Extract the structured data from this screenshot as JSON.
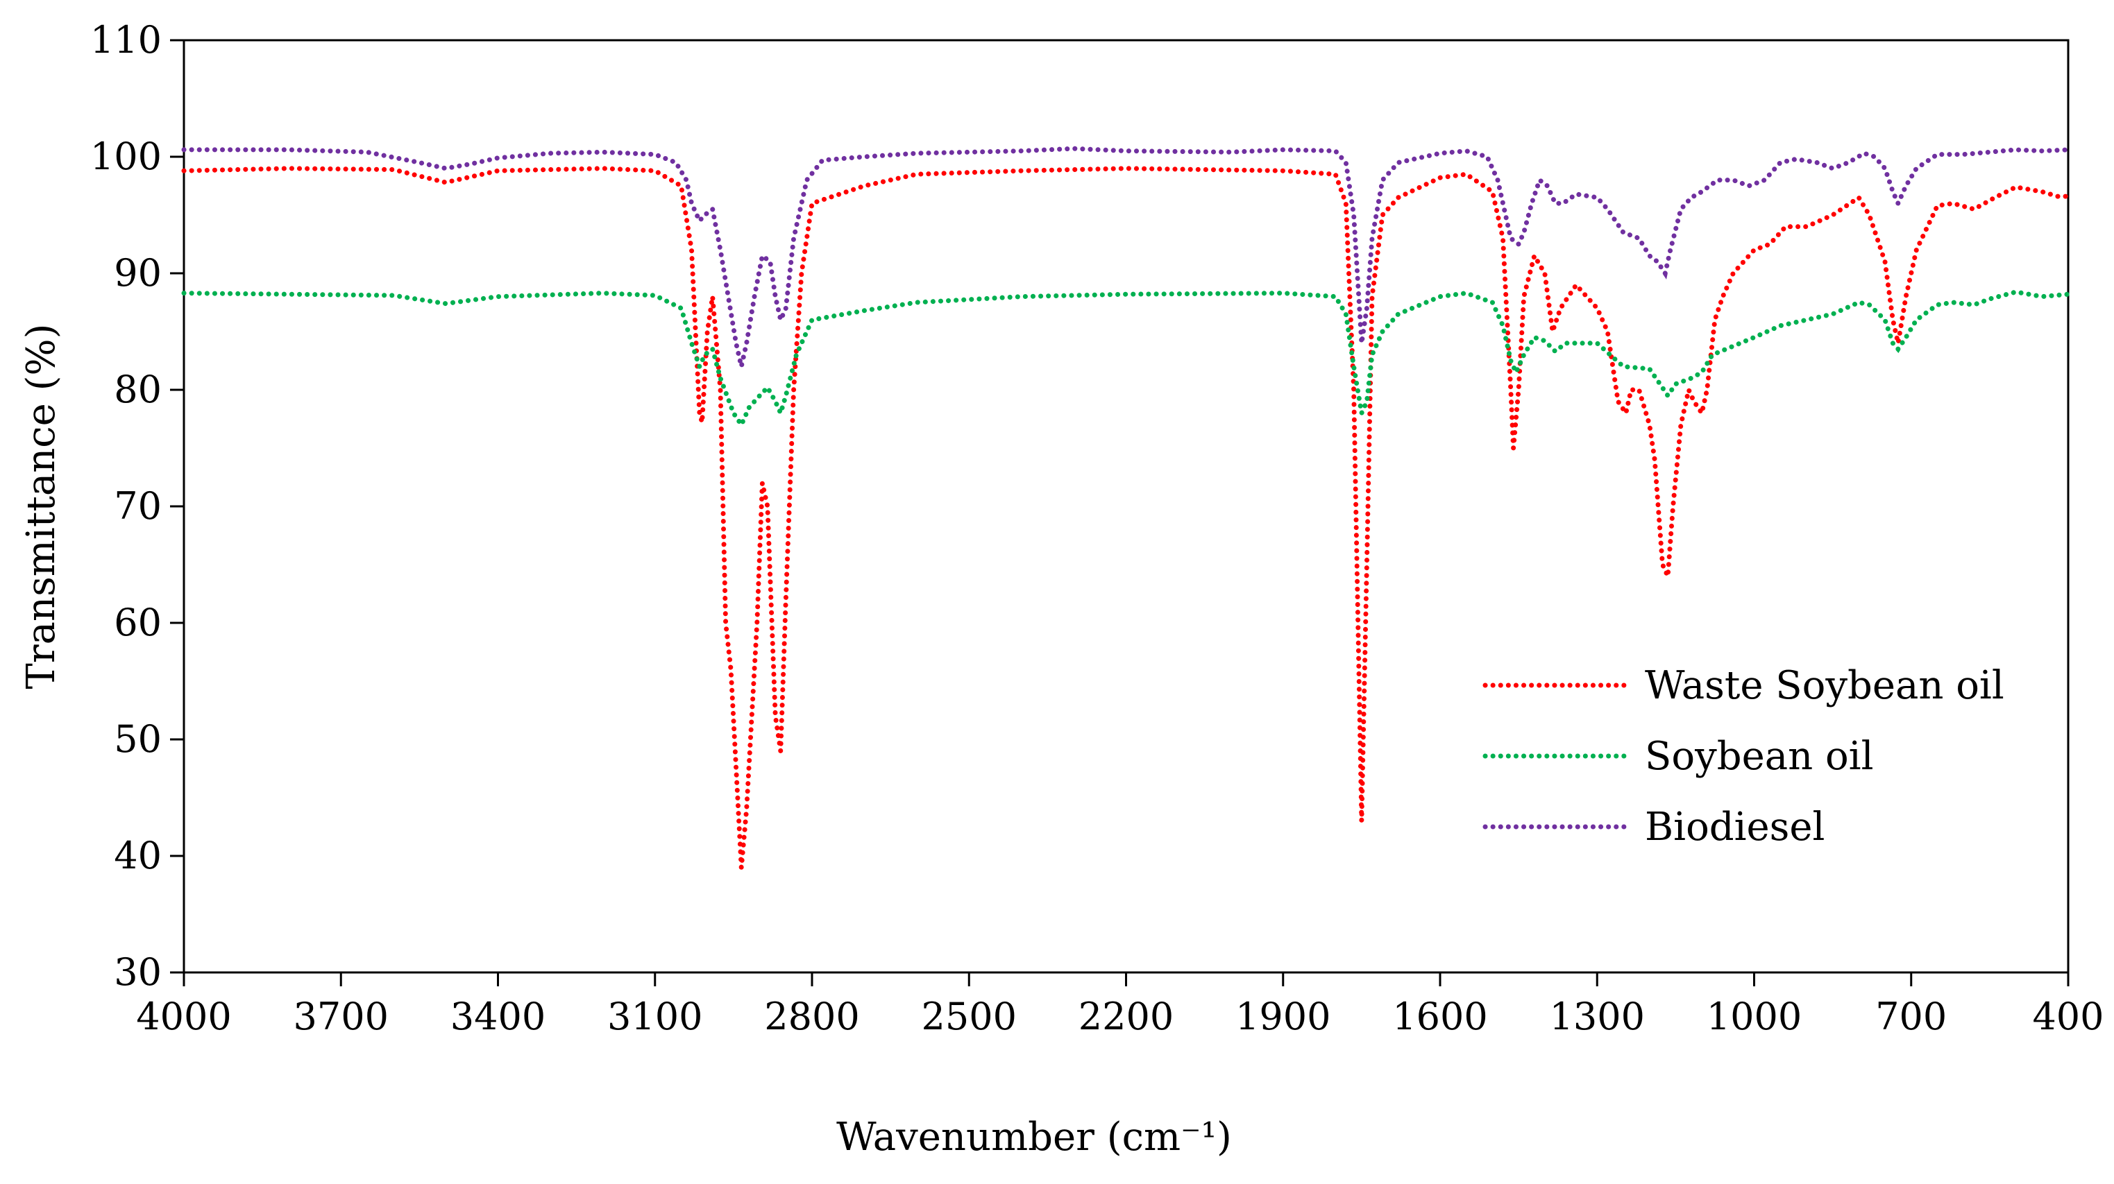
{
  "chart_data": {
    "type": "line",
    "title": "",
    "xlabel": "Wavenumber (cm⁻¹)",
    "ylabel": "Transmittance (%)",
    "xlim": [
      4000,
      400
    ],
    "ylim": [
      30,
      110
    ],
    "x_ticks": [
      4000,
      3700,
      3400,
      3100,
      2800,
      2500,
      2200,
      1900,
      1600,
      1300,
      1000,
      700,
      400
    ],
    "y_ticks": [
      30,
      40,
      50,
      60,
      70,
      80,
      90,
      100,
      110
    ],
    "grid": false,
    "legend_position": "center-right",
    "series": [
      {
        "name": "Waste Soybean oil",
        "color": "#ff0000",
        "points": [
          [
            4000,
            98.8
          ],
          [
            3800,
            99.0
          ],
          [
            3600,
            98.9
          ],
          [
            3500,
            97.8
          ],
          [
            3400,
            98.8
          ],
          [
            3200,
            99.0
          ],
          [
            3100,
            98.8
          ],
          [
            3050,
            97.5
          ],
          [
            3030,
            92
          ],
          [
            3015,
            78
          ],
          [
            3010,
            77.2
          ],
          [
            3000,
            85
          ],
          [
            2990,
            88
          ],
          [
            2975,
            80
          ],
          [
            2965,
            60
          ],
          [
            2955,
            56
          ],
          [
            2935,
            39
          ],
          [
            2925,
            44
          ],
          [
            2905,
            60
          ],
          [
            2895,
            72
          ],
          [
            2885,
            70
          ],
          [
            2870,
            52
          ],
          [
            2860,
            49
          ],
          [
            2850,
            62
          ],
          [
            2835,
            80
          ],
          [
            2820,
            90
          ],
          [
            2800,
            96
          ],
          [
            2700,
            97.5
          ],
          [
            2600,
            98.5
          ],
          [
            2400,
            98.8
          ],
          [
            2200,
            99.0
          ],
          [
            1900,
            98.8
          ],
          [
            1800,
            98.5
          ],
          [
            1780,
            96
          ],
          [
            1765,
            80
          ],
          [
            1750,
            43
          ],
          [
            1740,
            65
          ],
          [
            1730,
            88
          ],
          [
            1710,
            95
          ],
          [
            1680,
            96.5
          ],
          [
            1600,
            98.2
          ],
          [
            1550,
            98.5
          ],
          [
            1500,
            97
          ],
          [
            1480,
            93
          ],
          [
            1465,
            80
          ],
          [
            1460,
            75
          ],
          [
            1450,
            80
          ],
          [
            1440,
            88
          ],
          [
            1420,
            91.5
          ],
          [
            1400,
            90
          ],
          [
            1385,
            85
          ],
          [
            1370,
            87
          ],
          [
            1340,
            89
          ],
          [
            1320,
            88
          ],
          [
            1300,
            87
          ],
          [
            1280,
            85
          ],
          [
            1260,
            79
          ],
          [
            1245,
            78
          ],
          [
            1235,
            80
          ],
          [
            1220,
            80
          ],
          [
            1200,
            77
          ],
          [
            1190,
            74
          ],
          [
            1175,
            65
          ],
          [
            1165,
            64
          ],
          [
            1155,
            70
          ],
          [
            1140,
            77
          ],
          [
            1125,
            80
          ],
          [
            1115,
            79
          ],
          [
            1100,
            78
          ],
          [
            1090,
            80
          ],
          [
            1075,
            86
          ],
          [
            1060,
            88
          ],
          [
            1040,
            90
          ],
          [
            1000,
            92
          ],
          [
            970,
            92.5
          ],
          [
            940,
            94
          ],
          [
            900,
            94
          ],
          [
            850,
            95
          ],
          [
            800,
            96.5
          ],
          [
            780,
            95
          ],
          [
            750,
            91
          ],
          [
            735,
            86
          ],
          [
            725,
            84
          ],
          [
            710,
            88
          ],
          [
            690,
            92
          ],
          [
            650,
            95.8
          ],
          [
            620,
            96
          ],
          [
            580,
            95.5
          ],
          [
            540,
            96.5
          ],
          [
            500,
            97.4
          ],
          [
            450,
            97
          ],
          [
            420,
            96.6
          ],
          [
            400,
            96.6
          ]
        ]
      },
      {
        "name": "Soybean oil",
        "color": "#00b050",
        "points": [
          [
            4000,
            88.3
          ],
          [
            3800,
            88.2
          ],
          [
            3600,
            88.1
          ],
          [
            3500,
            87.4
          ],
          [
            3400,
            88
          ],
          [
            3200,
            88.3
          ],
          [
            3100,
            88.1
          ],
          [
            3050,
            87
          ],
          [
            3030,
            84
          ],
          [
            3015,
            82
          ],
          [
            3005,
            83
          ],
          [
            2990,
            83.5
          ],
          [
            2975,
            81
          ],
          [
            2950,
            78
          ],
          [
            2935,
            77
          ],
          [
            2920,
            78.5
          ],
          [
            2900,
            79.5
          ],
          [
            2885,
            80.2
          ],
          [
            2870,
            79
          ],
          [
            2860,
            78
          ],
          [
            2850,
            79.5
          ],
          [
            2830,
            83
          ],
          [
            2800,
            86
          ],
          [
            2700,
            86.8
          ],
          [
            2600,
            87.5
          ],
          [
            2400,
            88
          ],
          [
            2200,
            88.2
          ],
          [
            1900,
            88.3
          ],
          [
            1800,
            88
          ],
          [
            1780,
            86.5
          ],
          [
            1765,
            82
          ],
          [
            1750,
            78
          ],
          [
            1740,
            79
          ],
          [
            1730,
            83
          ],
          [
            1710,
            85
          ],
          [
            1680,
            86.5
          ],
          [
            1600,
            88
          ],
          [
            1550,
            88.3
          ],
          [
            1500,
            87.5
          ],
          [
            1480,
            85.5
          ],
          [
            1465,
            82.5
          ],
          [
            1455,
            81.5
          ],
          [
            1440,
            83
          ],
          [
            1420,
            84.5
          ],
          [
            1400,
            84.2
          ],
          [
            1380,
            83.3
          ],
          [
            1360,
            84
          ],
          [
            1300,
            84
          ],
          [
            1280,
            83.2
          ],
          [
            1250,
            82
          ],
          [
            1200,
            81.8
          ],
          [
            1180,
            80.5
          ],
          [
            1165,
            79.5
          ],
          [
            1150,
            80.5
          ],
          [
            1120,
            81
          ],
          [
            1100,
            81.5
          ],
          [
            1080,
            83
          ],
          [
            1000,
            84.5
          ],
          [
            950,
            85.5
          ],
          [
            900,
            86
          ],
          [
            850,
            86.5
          ],
          [
            800,
            87.5
          ],
          [
            780,
            87.3
          ],
          [
            750,
            86
          ],
          [
            735,
            84
          ],
          [
            725,
            83.5
          ],
          [
            710,
            84.5
          ],
          [
            690,
            86
          ],
          [
            650,
            87.3
          ],
          [
            620,
            87.5
          ],
          [
            580,
            87.3
          ],
          [
            550,
            87.8
          ],
          [
            500,
            88.4
          ],
          [
            450,
            88
          ],
          [
            400,
            88.2
          ]
        ]
      },
      {
        "name": "Biodiesel",
        "color": "#7030a0",
        "points": [
          [
            4000,
            100.6
          ],
          [
            3800,
            100.6
          ],
          [
            3650,
            100.4
          ],
          [
            3550,
            99.5
          ],
          [
            3500,
            99.0
          ],
          [
            3450,
            99.4
          ],
          [
            3400,
            99.9
          ],
          [
            3300,
            100.3
          ],
          [
            3200,
            100.4
          ],
          [
            3100,
            100.2
          ],
          [
            3060,
            99.5
          ],
          [
            3040,
            98
          ],
          [
            3030,
            96
          ],
          [
            3015,
            94.5
          ],
          [
            3005,
            95
          ],
          [
            2990,
            95.5
          ],
          [
            2975,
            92
          ],
          [
            2960,
            88
          ],
          [
            2945,
            84
          ],
          [
            2935,
            82
          ],
          [
            2925,
            84
          ],
          [
            2910,
            88
          ],
          [
            2895,
            91.5
          ],
          [
            2880,
            91
          ],
          [
            2870,
            88
          ],
          [
            2860,
            86
          ],
          [
            2850,
            87
          ],
          [
            2835,
            93
          ],
          [
            2810,
            98
          ],
          [
            2780,
            99.7
          ],
          [
            2700,
            100
          ],
          [
            2600,
            100.3
          ],
          [
            2400,
            100.5
          ],
          [
            2300,
            100.7
          ],
          [
            2200,
            100.5
          ],
          [
            2000,
            100.4
          ],
          [
            1900,
            100.6
          ],
          [
            1800,
            100.5
          ],
          [
            1780,
            99.5
          ],
          [
            1765,
            95
          ],
          [
            1750,
            84
          ],
          [
            1740,
            87
          ],
          [
            1730,
            93
          ],
          [
            1710,
            98
          ],
          [
            1680,
            99.5
          ],
          [
            1600,
            100.3
          ],
          [
            1550,
            100.5
          ],
          [
            1510,
            100
          ],
          [
            1490,
            98
          ],
          [
            1475,
            95
          ],
          [
            1465,
            93
          ],
          [
            1450,
            92.5
          ],
          [
            1440,
            93.5
          ],
          [
            1425,
            96
          ],
          [
            1410,
            98
          ],
          [
            1395,
            97.5
          ],
          [
            1380,
            96
          ],
          [
            1365,
            96
          ],
          [
            1340,
            96.8
          ],
          [
            1300,
            96.5
          ],
          [
            1280,
            95.5
          ],
          [
            1250,
            93.5
          ],
          [
            1220,
            93
          ],
          [
            1200,
            91.5
          ],
          [
            1185,
            91
          ],
          [
            1170,
            90
          ],
          [
            1160,
            92
          ],
          [
            1140,
            95.5
          ],
          [
            1120,
            96.5
          ],
          [
            1100,
            97
          ],
          [
            1070,
            98
          ],
          [
            1040,
            98
          ],
          [
            1010,
            97.5
          ],
          [
            980,
            98
          ],
          [
            950,
            99.5
          ],
          [
            920,
            99.8
          ],
          [
            880,
            99.5
          ],
          [
            850,
            99
          ],
          [
            820,
            99.5
          ],
          [
            790,
            100.3
          ],
          [
            770,
            100
          ],
          [
            750,
            99
          ],
          [
            735,
            97
          ],
          [
            725,
            96
          ],
          [
            710,
            97.5
          ],
          [
            690,
            99
          ],
          [
            650,
            100.2
          ],
          [
            600,
            100.2
          ],
          [
            550,
            100.4
          ],
          [
            500,
            100.6
          ],
          [
            450,
            100.5
          ],
          [
            400,
            100.6
          ]
        ]
      }
    ]
  }
}
